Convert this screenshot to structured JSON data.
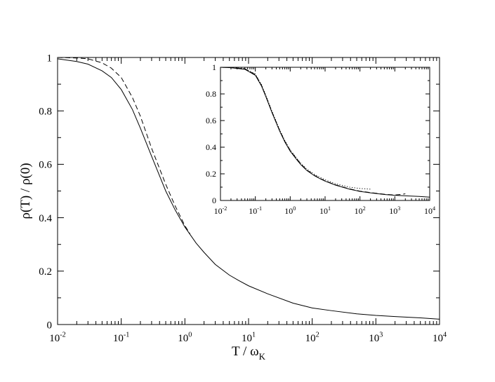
{
  "chart_data": [
    {
      "type": "line",
      "xlabel": "T / ω",
      "xlabel_sub": "K",
      "ylabel": "ρ(T) / ρ(0)",
      "x_scale": "log",
      "xlim": [
        0.01,
        10000
      ],
      "ylim": [
        0,
        1
      ],
      "x_ticks": [
        0.01,
        0.1,
        1,
        10,
        100,
        1000,
        10000
      ],
      "x_tick_labels": [
        {
          "base": "10",
          "exp": "-2"
        },
        {
          "base": "10",
          "exp": "-1"
        },
        {
          "base": "10",
          "exp": "0"
        },
        {
          "base": "10",
          "exp": "1"
        },
        {
          "base": "10",
          "exp": "2"
        },
        {
          "base": "10",
          "exp": "3"
        },
        {
          "base": "10",
          "exp": "4"
        }
      ],
      "y_ticks": [
        0,
        0.2,
        0.4,
        0.6,
        0.8,
        1
      ],
      "y_tick_labels": [
        "0",
        "0.2",
        "0.4",
        "0.6",
        "0.8",
        "1"
      ],
      "series": [
        {
          "style": "solid",
          "x": [
            0.01,
            0.02,
            0.03,
            0.05,
            0.07,
            0.1,
            0.15,
            0.2,
            0.3,
            0.5,
            0.7,
            1,
            1.5,
            2,
            3,
            5,
            7,
            10,
            20,
            50,
            100,
            200,
            500,
            1000,
            2000,
            5000,
            10000
          ],
          "y": [
            0.995,
            0.985,
            0.975,
            0.95,
            0.925,
            0.88,
            0.805,
            0.735,
            0.63,
            0.5,
            0.43,
            0.365,
            0.305,
            0.27,
            0.225,
            0.185,
            0.165,
            0.145,
            0.115,
            0.08,
            0.062,
            0.052,
            0.04,
            0.034,
            0.03,
            0.025,
            0.02
          ]
        },
        {
          "style": "dashed",
          "x": [
            0.01,
            0.02,
            0.03,
            0.05,
            0.07,
            0.1,
            0.15,
            0.2,
            0.3,
            0.5,
            0.7,
            1,
            1.2
          ],
          "y": [
            1.0,
            0.998,
            0.995,
            0.98,
            0.96,
            0.925,
            0.85,
            0.78,
            0.66,
            0.525,
            0.445,
            0.37,
            0.34
          ]
        }
      ]
    },
    {
      "type": "line",
      "inset": true,
      "x_scale": "log",
      "xlim": [
        0.01,
        10000
      ],
      "ylim": [
        0,
        1
      ],
      "x_ticks": [
        0.01,
        0.1,
        1,
        10,
        100,
        1000,
        10000
      ],
      "x_tick_labels": [
        {
          "base": "10",
          "exp": "-2"
        },
        {
          "base": "10",
          "exp": "-1"
        },
        {
          "base": "10",
          "exp": "0"
        },
        {
          "base": "10",
          "exp": "1"
        },
        {
          "base": "10",
          "exp": "2"
        },
        {
          "base": "10",
          "exp": "3"
        },
        {
          "base": "10",
          "exp": "4"
        }
      ],
      "y_ticks": [
        0,
        0.2,
        0.4,
        0.6,
        0.8,
        1
      ],
      "y_tick_labels": [
        "0",
        "0.2",
        "0.4",
        "0.6",
        "0.8",
        "1"
      ],
      "series": [
        {
          "style": "solid",
          "x": [
            0.01,
            0.02,
            0.05,
            0.1,
            0.15,
            0.2,
            0.3,
            0.5,
            0.7,
            1,
            1.5,
            2,
            3,
            5,
            7,
            10,
            20,
            50,
            100,
            200,
            500,
            1000,
            2000,
            5000,
            10000
          ],
          "y": [
            1.0,
            0.997,
            0.985,
            0.94,
            0.86,
            0.78,
            0.66,
            0.52,
            0.44,
            0.37,
            0.31,
            0.27,
            0.225,
            0.185,
            0.165,
            0.145,
            0.115,
            0.085,
            0.068,
            0.057,
            0.045,
            0.039,
            0.035,
            0.03,
            0.025
          ]
        },
        {
          "style": "dashed",
          "x": [
            0.01,
            0.02,
            0.05,
            0.1,
            0.15,
            0.2,
            0.3,
            0.5,
            0.7,
            1,
            1.5,
            2,
            3,
            5,
            7,
            10,
            20,
            50,
            100,
            200,
            500,
            1000,
            1500,
            2000
          ],
          "y": [
            1.0,
            0.998,
            0.988,
            0.945,
            0.865,
            0.785,
            0.665,
            0.525,
            0.445,
            0.375,
            0.315,
            0.275,
            0.228,
            0.188,
            0.167,
            0.147,
            0.117,
            0.087,
            0.07,
            0.059,
            0.047,
            0.041,
            0.045,
            0.05
          ]
        },
        {
          "style": "dotted",
          "x": [
            0.01,
            0.02,
            0.05,
            0.1,
            0.15,
            0.2,
            0.3,
            0.5,
            0.7,
            1,
            1.5,
            2,
            3,
            5,
            7,
            10,
            20,
            50,
            100,
            200
          ],
          "y": [
            1.0,
            0.998,
            0.99,
            0.95,
            0.87,
            0.79,
            0.67,
            0.53,
            0.45,
            0.38,
            0.32,
            0.28,
            0.235,
            0.195,
            0.175,
            0.155,
            0.125,
            0.1,
            0.09,
            0.085
          ]
        }
      ]
    }
  ]
}
